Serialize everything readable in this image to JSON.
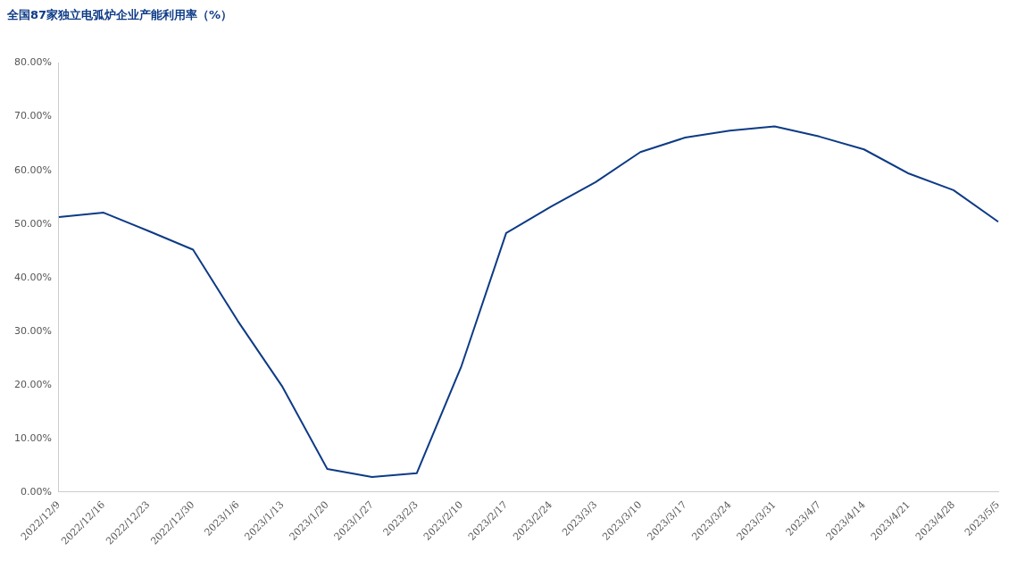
{
  "chart_data": {
    "type": "line",
    "title": "全国87家独立电弧炉企业产能利用率（%）",
    "categories": [
      "2022/12/9",
      "2022/12/16",
      "2022/12/23",
      "2022/12/30",
      "2023/1/6",
      "2023/1/13",
      "2023/1/20",
      "2023/1/27",
      "2023/2/3",
      "2023/2/10",
      "2023/2/17",
      "2023/2/24",
      "2023/3/3",
      "2023/3/10",
      "2023/3/17",
      "2023/3/24",
      "2023/3/31",
      "2023/4/7",
      "2023/4/14",
      "2023/4/21",
      "2023/4/28",
      "2023/5/5"
    ],
    "series": [
      {
        "color": "#0d3b86",
        "values": [
          51.3,
          52.1,
          48.7,
          45.2,
          31.9,
          19.6,
          4.3,
          2.8,
          3.5,
          23.5,
          48.3,
          53.2,
          57.8,
          63.4,
          66.1,
          67.4,
          68.2,
          66.3,
          63.9,
          59.4,
          56.3,
          50.4
        ]
      }
    ],
    "ylim": [
      0,
      80
    ],
    "yticks": [
      {
        "value": 0,
        "label": "0.00%"
      },
      {
        "value": 10,
        "label": "10.00%"
      },
      {
        "value": 20,
        "label": "20.00%"
      },
      {
        "value": 30,
        "label": "30.00%"
      },
      {
        "value": 40,
        "label": "40.00%"
      },
      {
        "value": 50,
        "label": "50.00%"
      },
      {
        "value": 60,
        "label": "60.00%"
      },
      {
        "value": 70,
        "label": "70.00%"
      },
      {
        "value": 80,
        "label": "80.00%"
      }
    ],
    "grid": false,
    "legend": false,
    "marker": "none",
    "line_style": "solid"
  }
}
